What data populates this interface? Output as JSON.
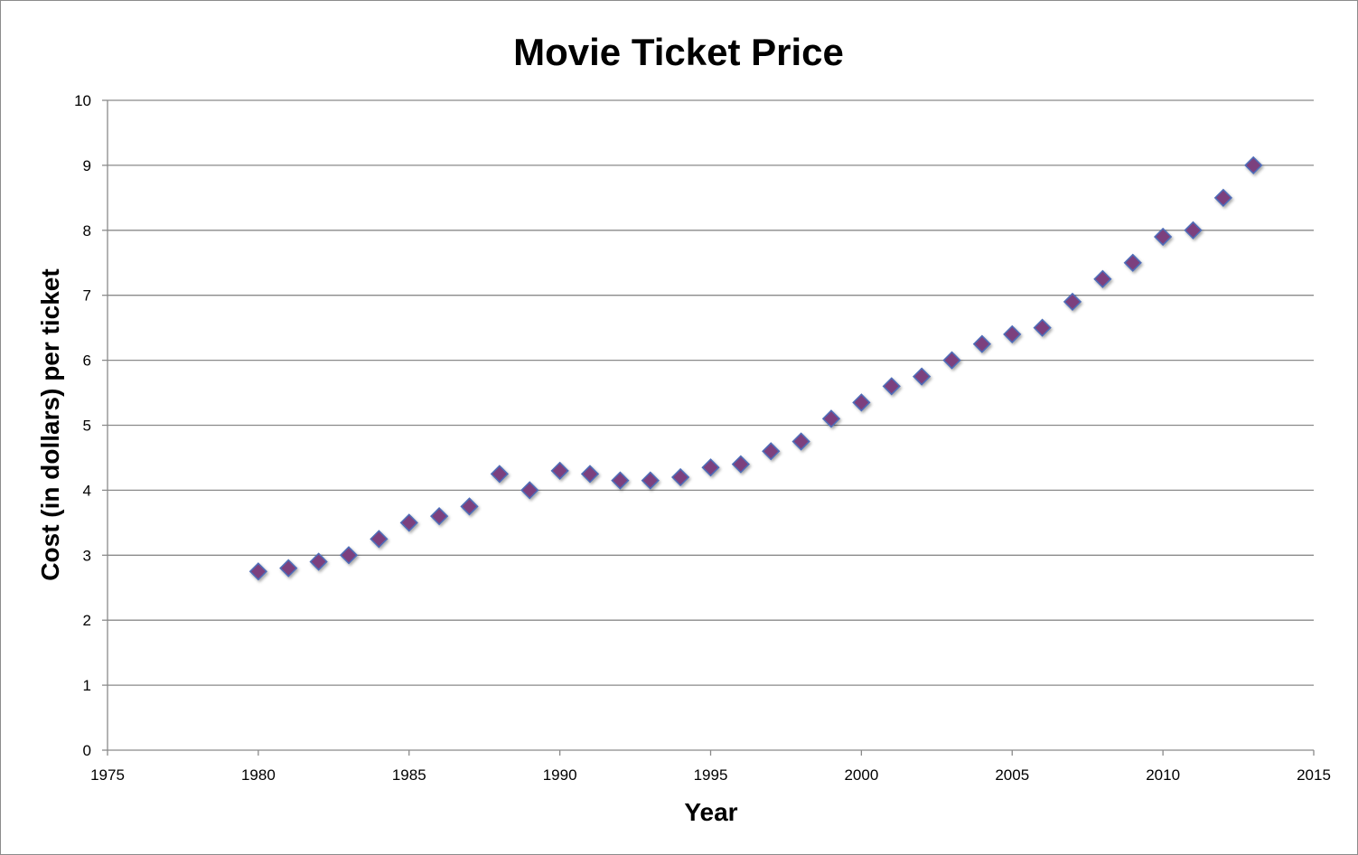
{
  "chart_data": {
    "type": "scatter",
    "title": "Movie Ticket Price",
    "xlabel": "Year",
    "ylabel": "Cost (in dollars) per ticket",
    "xlim": [
      1975,
      2015
    ],
    "ylim": [
      0,
      10
    ],
    "x_ticks": [
      "1975",
      "1980",
      "1985",
      "1990",
      "1995",
      "2000",
      "2005",
      "2010",
      "2015"
    ],
    "y_ticks": [
      "0",
      "1",
      "2",
      "3",
      "4",
      "5",
      "6",
      "7",
      "8",
      "9",
      "10"
    ],
    "grid": true,
    "legend": "none",
    "marker": "diamond",
    "colors": {
      "marker_fill": "#7b3f7e",
      "marker_edge": "#4f6db8",
      "gridline": "#8a8a8a"
    },
    "series": [
      {
        "x": [
          1980,
          1981,
          1982,
          1983,
          1984,
          1985,
          1986,
          1987,
          1988,
          1989,
          1990,
          1991,
          1992,
          1993,
          1994,
          1995,
          1996,
          1997,
          1998,
          1999,
          2000,
          2001,
          2002,
          2003,
          2004,
          2005,
          2006,
          2007,
          2008,
          2009,
          2010,
          2011,
          2012,
          2013
        ],
        "y": [
          2.75,
          2.8,
          2.9,
          3.0,
          3.25,
          3.5,
          3.6,
          3.75,
          4.25,
          4.0,
          4.3,
          4.25,
          4.15,
          4.15,
          4.2,
          4.35,
          4.4,
          4.6,
          4.75,
          5.1,
          5.35,
          5.6,
          5.75,
          6.0,
          6.25,
          6.4,
          6.5,
          6.9,
          7.25,
          7.5,
          7.9,
          8.0,
          8.5,
          9.0
        ]
      }
    ]
  }
}
